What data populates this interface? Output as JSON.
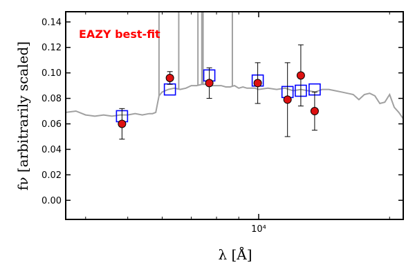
{
  "chart_data": {
    "type": "scatter",
    "title": "",
    "annotation": "EAZY best-fit",
    "annotation_color": "#ff0000",
    "xlabel": "λ [Å]",
    "ylabel": "fν [arbitrarily scaled]",
    "x_scale": "log",
    "xlim": [
      3600,
      21500
    ],
    "ylim": [
      -0.015,
      0.148
    ],
    "y_ticks": [
      0.0,
      0.02,
      0.04,
      0.06,
      0.08,
      0.1,
      0.12,
      0.14
    ],
    "y_tick_labels": [
      "0.00",
      "0.02",
      "0.04",
      "0.06",
      "0.08",
      "0.10",
      "0.12",
      "0.14"
    ],
    "x_ticks": [
      10000
    ],
    "x_tick_labels": [
      "10⁴"
    ],
    "grid": false,
    "colors": {
      "template": "#a0a0a0",
      "model": "#0000ff",
      "observed": "#dd1111",
      "errorbar": "#000000"
    },
    "series": [
      {
        "kind": "line",
        "x": [
          3600,
          3800,
          4000,
          4200,
          4400,
          4600,
          4800,
          5000,
          5200,
          5400,
          5600,
          5700,
          5800,
          5900,
          6000,
          6200,
          6400,
          6600,
          6800,
          7000,
          7200,
          7400,
          7600,
          7800,
          8000,
          8200,
          8400,
          8600,
          8800,
          9000,
          9200,
          9400,
          9600,
          9800,
          10000,
          10500,
          11000,
          11500,
          12000,
          12500,
          13000,
          13500,
          14000,
          14500,
          15000,
          15500,
          16000,
          16500,
          17000,
          17500,
          18000,
          18500,
          19000,
          19500,
          20000,
          20500,
          21000,
          21500
        ],
        "y": [
          0.069,
          0.07,
          0.067,
          0.066,
          0.067,
          0.066,
          0.067,
          0.067,
          0.068,
          0.067,
          0.068,
          0.068,
          0.069,
          0.082,
          0.085,
          0.087,
          0.088,
          0.087,
          0.088,
          0.09,
          0.09,
          0.091,
          0.091,
          0.09,
          0.09,
          0.09,
          0.089,
          0.089,
          0.09,
          0.088,
          0.089,
          0.088,
          0.088,
          0.088,
          0.087,
          0.088,
          0.087,
          0.088,
          0.086,
          0.087,
          0.086,
          0.085,
          0.087,
          0.087,
          0.086,
          0.085,
          0.084,
          0.083,
          0.079,
          0.083,
          0.084,
          0.082,
          0.076,
          0.077,
          0.083,
          0.073,
          0.069,
          0.064
        ]
      },
      {
        "kind": "emission_lines",
        "x": [
          5900,
          6550,
          7250,
          7400,
          7450,
          8700
        ],
        "y": [
          0.15,
          0.15,
          0.15,
          0.15,
          0.15,
          0.15
        ]
      },
      {
        "kind": "model_squares",
        "x": [
          4850,
          6250,
          7700,
          9950,
          11650,
          12500,
          13450
        ],
        "y": [
          0.066,
          0.087,
          0.098,
          0.094,
          0.085,
          0.086,
          0.087
        ]
      },
      {
        "kind": "observed",
        "x": [
          4850,
          6250,
          7700,
          9950,
          11650,
          12500,
          13450
        ],
        "y": [
          0.06,
          0.096,
          0.092,
          0.092,
          0.079,
          0.098,
          0.07
        ],
        "err": [
          0.012,
          0.005,
          0.012,
          0.016,
          0.029,
          0.024,
          0.015
        ]
      }
    ]
  }
}
